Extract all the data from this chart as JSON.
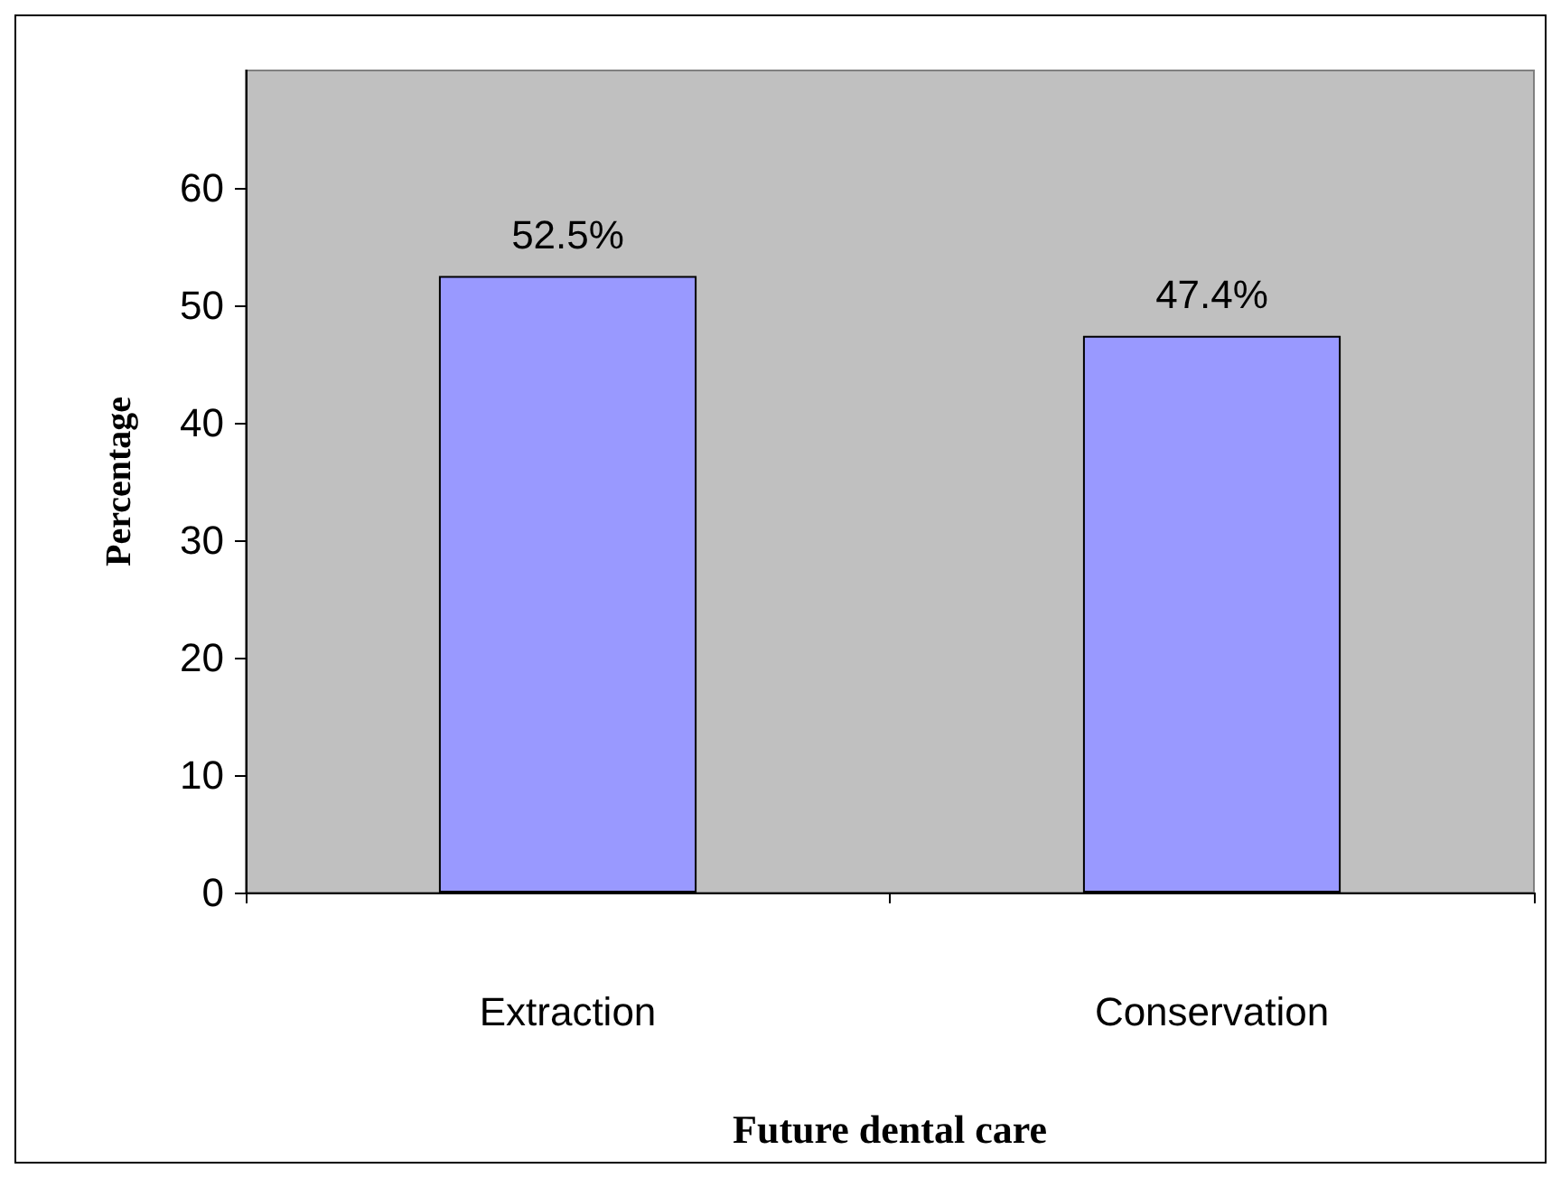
{
  "chart_data": {
    "type": "bar",
    "xlabel": "Future dental care",
    "ylabel": "Percentage",
    "categories": [
      "Extraction",
      "Conservation"
    ],
    "values": [
      52.5,
      47.4
    ],
    "value_labels": [
      "52.5%",
      "47.4%"
    ],
    "color": "#9999ff",
    "ylim": [
      0,
      70
    ],
    "yticks": [
      0,
      10,
      20,
      30,
      40,
      50,
      60
    ],
    "grid": false
  }
}
